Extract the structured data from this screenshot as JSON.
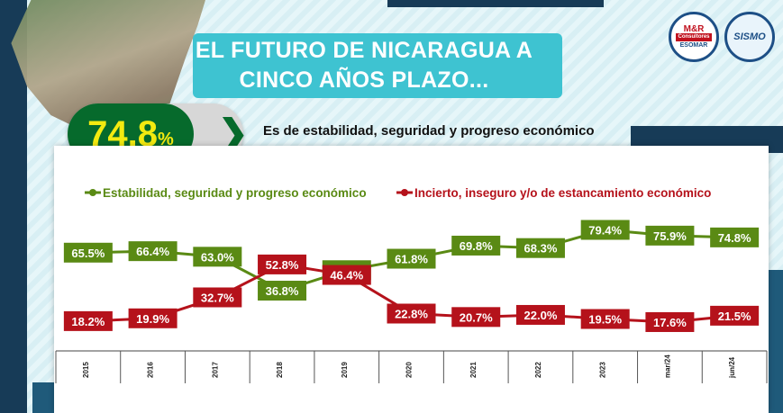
{
  "header": {
    "title_line1": "EL FUTURO DE NICARAGUA A",
    "title_line2": "CINCO AÑOS PLAZO...",
    "highlight_value": "74.8",
    "highlight_unit": "%",
    "highlight_caption": "Es de estabilidad, seguridad y progreso económico"
  },
  "logos": {
    "mr_line1": "M&R",
    "mr_line2": "Consultores",
    "mr_line3": "ESOMAR",
    "sismo": "SISMO"
  },
  "colors": {
    "green": "#5a8a14",
    "red": "#b5121b",
    "title_box": "#3ec3d1",
    "dark_navy": "#173b57",
    "highlight_green": "#066a2c",
    "highlight_text": "#f3ea10"
  },
  "chart_data": {
    "type": "line",
    "categories": [
      "2015",
      "2016",
      "2017",
      "2018",
      "2019",
      "2020",
      "2021",
      "2022",
      "2023",
      "mar/24",
      "jun/24"
    ],
    "series": [
      {
        "name": "Estabilidad, seguridad y progreso económico",
        "color": "#5a8a14",
        "values": [
          65.5,
          66.4,
          63.0,
          36.8,
          49.3,
          61.8,
          69.8,
          68.3,
          79.4,
          75.9,
          74.8
        ]
      },
      {
        "name": "Incierto, inseguro y/o de estancamiento económico",
        "color": "#b5121b",
        "values": [
          18.2,
          19.9,
          32.7,
          52.8,
          46.4,
          22.8,
          20.7,
          22.0,
          19.5,
          17.6,
          21.5
        ]
      }
    ],
    "value_suffix": "%",
    "legend_position": "top",
    "grid": false
  }
}
